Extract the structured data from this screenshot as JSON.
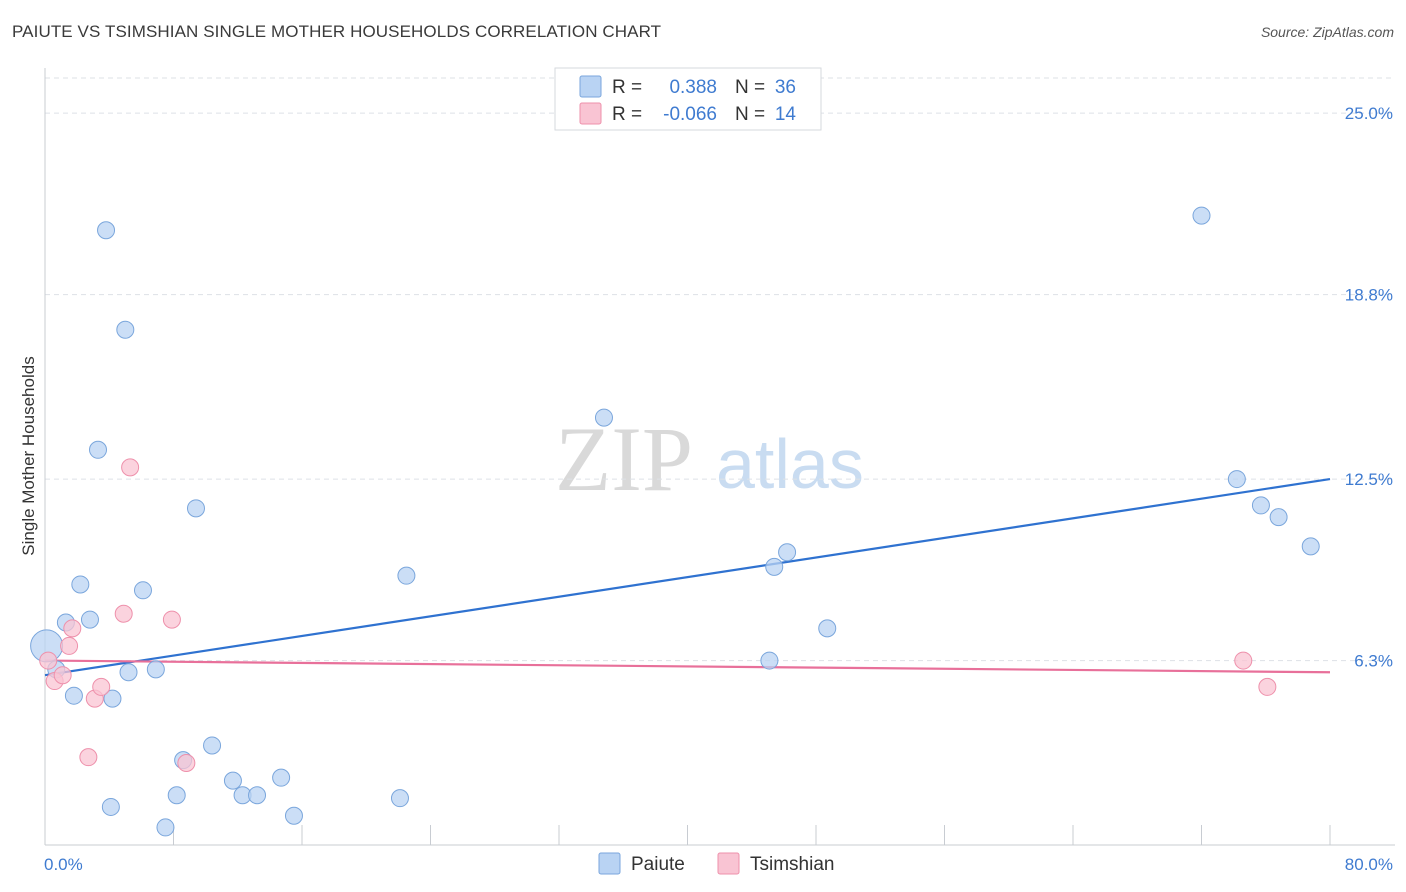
{
  "header": {
    "title": "PAIUTE VS TSIMSHIAN SINGLE MOTHER HOUSEHOLDS CORRELATION CHART",
    "source": "Source: ZipAtlas.com"
  },
  "watermark": {
    "zip": "ZIP",
    "atlas": "atlas"
  },
  "colors": {
    "paiute_fill": "#b9d3f3",
    "paiute_stroke": "#7aa6dc",
    "paiute_line": "#2f72d0",
    "tsimshian_fill": "#f9c4d3",
    "tsimshian_stroke": "#ee90ab",
    "tsimshian_line": "#e8709a",
    "tick_text": "#3f7bd0",
    "grid": "#dde1e6"
  },
  "legend": {
    "rows": [
      {
        "r_label": "R =",
        "r_value": "0.388",
        "n_label": "N =",
        "n_value": "36"
      },
      {
        "r_label": "R =",
        "r_value": "-0.066",
        "n_label": "N =",
        "n_value": "14"
      }
    ]
  },
  "chart_data": {
    "type": "scatter",
    "title": "PAIUTE VS TSIMSHIAN SINGLE MOTHER HOUSEHOLDS CORRELATION CHART",
    "xlabel": "",
    "ylabel": "Single Mother Households",
    "xlim": [
      0,
      80
    ],
    "ylim": [
      0,
      26.2
    ],
    "x_tick_labels": [
      "0.0%",
      "80.0%"
    ],
    "y_ticks": [
      6.3,
      12.5,
      18.8,
      25.0
    ],
    "y_tick_labels": [
      "6.3%",
      "12.5%",
      "18.8%",
      "25.0%"
    ],
    "grid": true,
    "series": [
      {
        "name": "Paiute",
        "r": 0.388,
        "n": 36,
        "trend": {
          "x": [
            0,
            80
          ],
          "y": [
            5.8,
            12.5
          ]
        },
        "points": [
          [
            0.1,
            6.8
          ],
          [
            0.7,
            6.0
          ],
          [
            1.3,
            7.6
          ],
          [
            1.8,
            5.1
          ],
          [
            2.2,
            8.9
          ],
          [
            2.8,
            7.7
          ],
          [
            3.3,
            13.5
          ],
          [
            3.8,
            21.0
          ],
          [
            4.1,
            1.3
          ],
          [
            4.2,
            5.0
          ],
          [
            5.0,
            17.6
          ],
          [
            5.2,
            5.9
          ],
          [
            6.1,
            8.7
          ],
          [
            6.9,
            6.0
          ],
          [
            7.5,
            0.6
          ],
          [
            8.2,
            1.7
          ],
          [
            8.6,
            2.9
          ],
          [
            9.4,
            11.5
          ],
          [
            10.4,
            3.4
          ],
          [
            11.7,
            2.2
          ],
          [
            12.3,
            1.7
          ],
          [
            13.2,
            1.7
          ],
          [
            14.7,
            2.3
          ],
          [
            15.5,
            1.0
          ],
          [
            22.1,
            1.6
          ],
          [
            22.5,
            9.2
          ],
          [
            34.8,
            14.6
          ],
          [
            45.1,
            6.3
          ],
          [
            45.4,
            9.5
          ],
          [
            46.2,
            10.0
          ],
          [
            48.7,
            7.4
          ],
          [
            72.0,
            21.5
          ],
          [
            74.2,
            12.5
          ],
          [
            75.7,
            11.6
          ],
          [
            76.8,
            11.2
          ],
          [
            78.8,
            10.2
          ]
        ]
      },
      {
        "name": "Tsimshian",
        "r": -0.066,
        "n": 14,
        "trend": {
          "x": [
            0,
            80
          ],
          "y": [
            6.3,
            5.9
          ]
        },
        "points": [
          [
            0.6,
            5.6
          ],
          [
            1.1,
            5.8
          ],
          [
            1.5,
            6.8
          ],
          [
            1.7,
            7.4
          ],
          [
            2.7,
            3.0
          ],
          [
            3.1,
            5.0
          ],
          [
            3.5,
            5.4
          ],
          [
            4.9,
            7.9
          ],
          [
            5.3,
            12.9
          ],
          [
            7.9,
            7.7
          ],
          [
            8.8,
            2.8
          ],
          [
            74.6,
            6.3
          ],
          [
            76.1,
            5.4
          ],
          [
            0.2,
            6.3
          ]
        ]
      }
    ]
  }
}
